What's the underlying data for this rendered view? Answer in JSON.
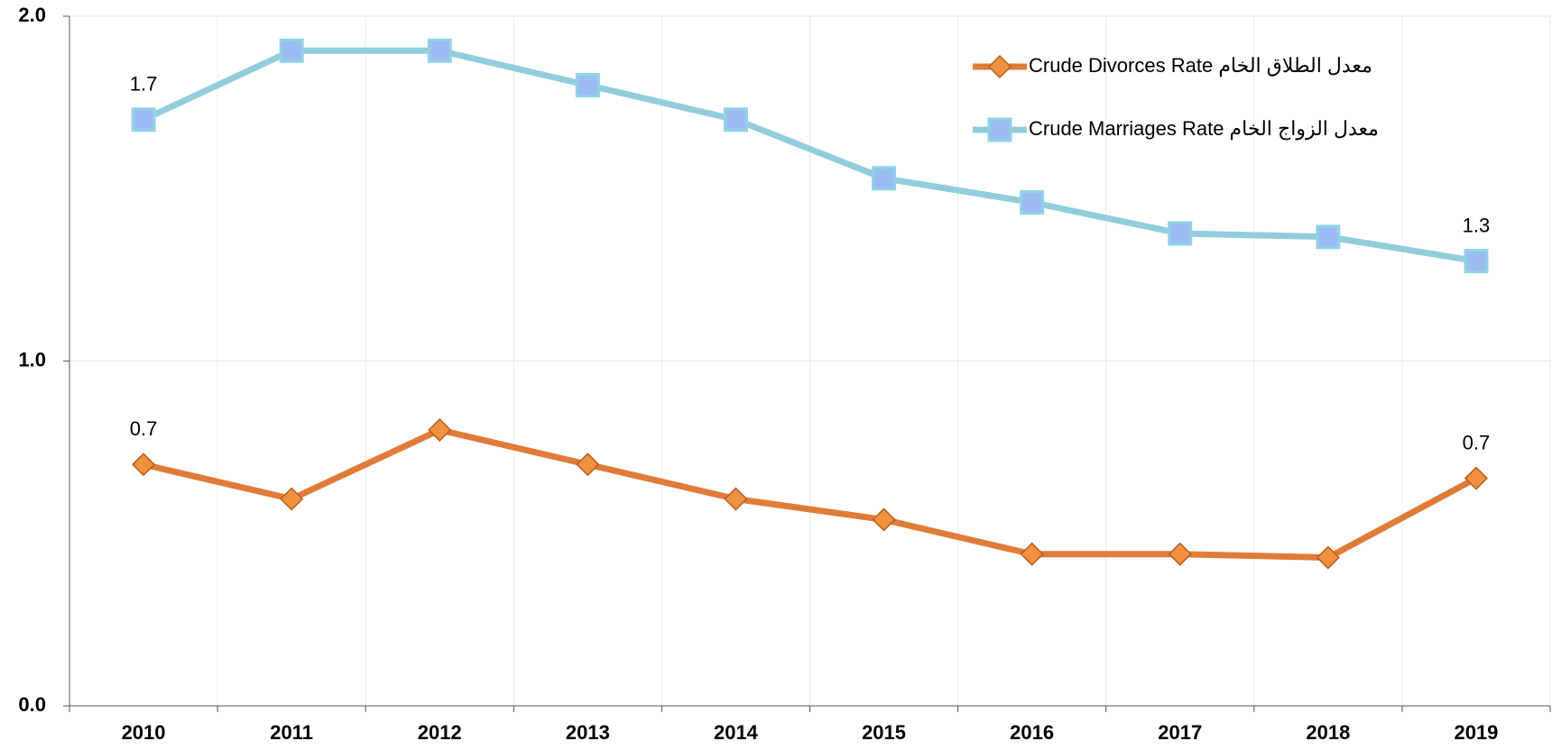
{
  "chart_data": {
    "type": "line",
    "categories": [
      "2010",
      "2011",
      "2012",
      "2013",
      "2014",
      "2015",
      "2016",
      "2017",
      "2018",
      "2019"
    ],
    "series": [
      {
        "name": "Crude Divorces Rate معدل الطلاق الخام",
        "color": "#e07b39",
        "marker": "diamond",
        "values": [
          0.7,
          0.6,
          0.8,
          0.7,
          0.6,
          0.54,
          0.44,
          0.44,
          0.43,
          0.66
        ],
        "value_labels": [
          "0.7",
          null,
          null,
          null,
          null,
          null,
          null,
          null,
          null,
          "0.7"
        ]
      },
      {
        "name": "Crude Marriages Rate معدل الزواج الخام",
        "color": "#92cddc",
        "marker": "square",
        "values": [
          1.7,
          1.9,
          1.9,
          1.8,
          1.7,
          1.53,
          1.46,
          1.37,
          1.36,
          1.29
        ],
        "value_labels": [
          "1.7",
          null,
          null,
          null,
          null,
          null,
          null,
          null,
          null,
          "1.3"
        ]
      }
    ],
    "ylim": [
      0,
      2
    ],
    "yticks": [
      {
        "value": 0,
        "label": "0.0"
      },
      {
        "value": 1,
        "label": "1.0"
      },
      {
        "value": 2,
        "label": "2.0"
      }
    ],
    "grid": true,
    "legend": "top-right"
  }
}
